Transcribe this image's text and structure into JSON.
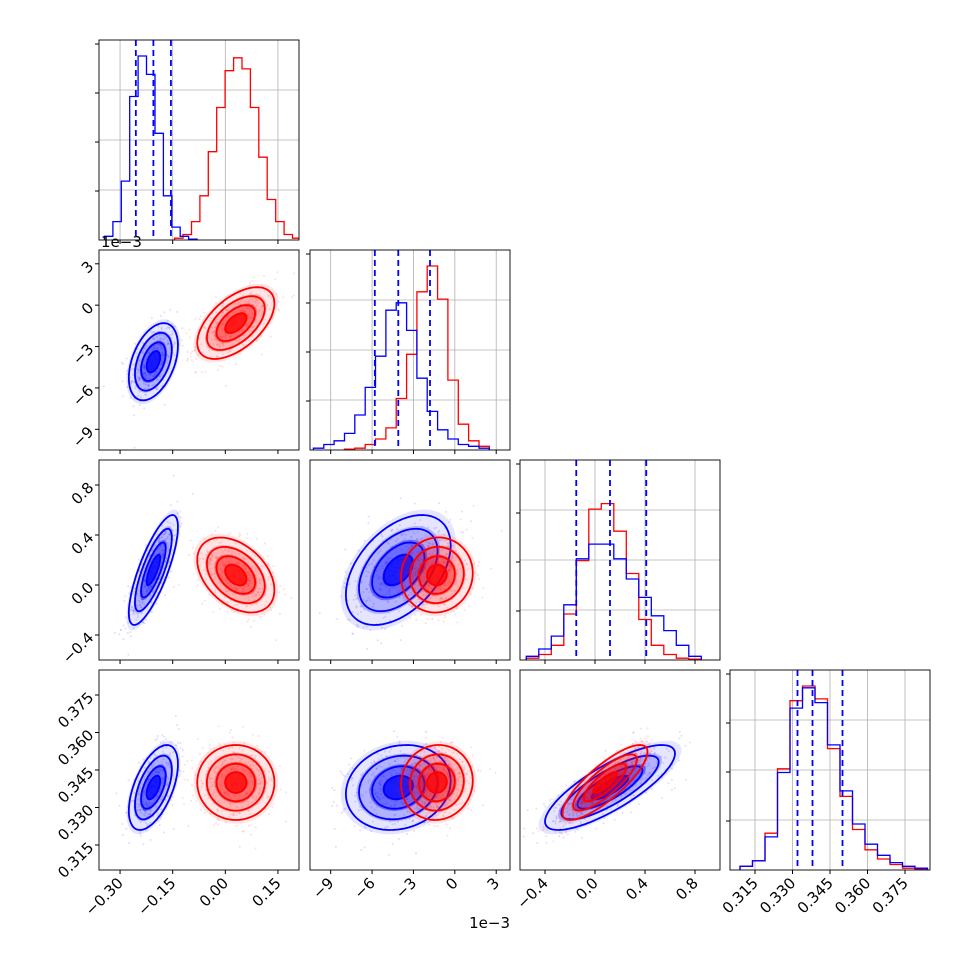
{
  "chart_data": {
    "type": "scatter",
    "title": "",
    "colors": {
      "series_a": "#0000ff",
      "series_b": "#ff0000"
    },
    "grid": true,
    "parameters": [
      {
        "range": [
          -0.36,
          0.21
        ],
        "ticks": [
          -0.3,
          -0.15,
          0.0,
          0.15
        ],
        "tick_labels": [
          "−0.30",
          "−0.15",
          "0.00",
          "0.15"
        ]
      },
      {
        "range": [
          -10.5,
          4.0
        ],
        "ticks": [
          -9,
          -6,
          -3,
          0,
          3
        ],
        "tick_labels": [
          "−9",
          "−6",
          "−3",
          "0",
          "3"
        ],
        "offset_text": "1e−3"
      },
      {
        "range": [
          -0.6,
          1.0
        ],
        "ticks": [
          -0.4,
          0.0,
          0.4,
          0.8
        ],
        "tick_labels": [
          "−0.4",
          "0.0",
          "0.4",
          "0.8"
        ]
      },
      {
        "range": [
          0.305,
          0.385
        ],
        "ticks": [
          0.315,
          0.33,
          0.345,
          0.36,
          0.375
        ],
        "tick_labels": [
          "0.315",
          "0.330",
          "0.345",
          "0.360",
          "0.375"
        ]
      }
    ],
    "series_a_quantiles": [
      [
        -0.255,
        -0.205,
        -0.155
      ],
      [
        -5.8,
        -4.1,
        -1.8
      ],
      [
        -0.15,
        0.12,
        0.41
      ],
      [
        0.332,
        0.338,
        0.35
      ]
    ],
    "series_a_histograms": [
      {
        "x": [
          -0.3325,
          -0.3085,
          -0.2845,
          -0.2605,
          -0.2365,
          -0.2125,
          -0.1885,
          -0.1645,
          -0.1405,
          -0.1165,
          -0.0925
        ],
        "y": [
          0.02,
          0.1,
          0.32,
          0.78,
          1.0,
          0.9,
          0.58,
          0.24,
          0.07,
          0.02,
          0.005
        ]
      },
      {
        "x": [
          -9.875,
          -9.125,
          -8.375,
          -7.625,
          -6.875,
          -6.125,
          -5.375,
          -4.625,
          -3.875,
          -3.125,
          -2.375,
          -1.625,
          -0.875,
          -0.125,
          0.625,
          1.375,
          2.125
        ],
        "y": [
          0.01,
          0.03,
          0.05,
          0.09,
          0.19,
          0.34,
          0.51,
          0.76,
          0.8,
          0.65,
          0.39,
          0.21,
          0.11,
          0.06,
          0.03,
          0.02,
          0.01
        ]
      },
      {
        "x": [
          -0.5,
          -0.4,
          -0.3,
          -0.2,
          -0.1,
          0.0,
          0.1,
          0.2,
          0.3,
          0.4,
          0.5,
          0.6,
          0.7,
          0.8
        ],
        "y": [
          0.02,
          0.06,
          0.13,
          0.3,
          0.55,
          0.63,
          0.63,
          0.55,
          0.44,
          0.34,
          0.24,
          0.16,
          0.08,
          0.02
        ]
      },
      {
        "x": [
          0.3115,
          0.3165,
          0.3215,
          0.3265,
          0.3315,
          0.3365,
          0.3415,
          0.3465,
          0.3515,
          0.3565,
          0.3615,
          0.3665,
          0.3715,
          0.3765,
          0.3815
        ],
        "y": [
          0.02,
          0.05,
          0.18,
          0.53,
          0.88,
          0.99,
          0.91,
          0.68,
          0.43,
          0.25,
          0.14,
          0.08,
          0.04,
          0.02,
          0.01
        ]
      }
    ],
    "series_b_histograms": [
      {
        "x": [
          -0.1325,
          -0.1085,
          -0.0845,
          -0.0605,
          -0.0365,
          -0.0125,
          0.0115,
          0.0355,
          0.0595,
          0.0835,
          0.1075,
          0.1315,
          0.1555,
          0.1795,
          0.2035
        ],
        "y": [
          0.01,
          0.03,
          0.1,
          0.24,
          0.48,
          0.72,
          0.92,
          0.99,
          0.93,
          0.72,
          0.45,
          0.22,
          0.1,
          0.03,
          0.01
        ]
      },
      {
        "x": [
          -7.625,
          -6.875,
          -6.125,
          -5.375,
          -4.625,
          -3.875,
          -3.125,
          -2.375,
          -1.625,
          -0.875,
          -0.125,
          0.625,
          1.375,
          2.125
        ],
        "y": [
          0.005,
          0.01,
          0.03,
          0.06,
          0.12,
          0.28,
          0.52,
          0.86,
          1.0,
          0.82,
          0.38,
          0.14,
          0.05,
          0.02
        ]
      },
      {
        "x": [
          -0.5,
          -0.4,
          -0.3,
          -0.2,
          -0.1,
          0.0,
          0.1,
          0.2,
          0.3,
          0.4,
          0.5,
          0.6,
          0.7,
          0.8
        ],
        "y": [
          0.01,
          0.03,
          0.08,
          0.25,
          0.54,
          0.82,
          0.85,
          0.7,
          0.47,
          0.22,
          0.08,
          0.03,
          0.01,
          0.005
        ]
      },
      {
        "x": [
          0.3115,
          0.3165,
          0.3215,
          0.3265,
          0.3315,
          0.3365,
          0.3415,
          0.3465,
          0.3515,
          0.3565,
          0.3615,
          0.3665,
          0.3715,
          0.3765,
          0.3815
        ],
        "y": [
          0.02,
          0.05,
          0.2,
          0.55,
          0.92,
          1.0,
          0.93,
          0.66,
          0.4,
          0.22,
          0.11,
          0.06,
          0.03,
          0.01,
          0.005
        ]
      }
    ],
    "series_a_centers": [
      [
        -0.205,
        -4.1,
        0.12,
        0.338
      ]
    ],
    "series_b_centers": [
      [
        0.03,
        -1.3,
        0.08,
        0.34
      ]
    ]
  }
}
